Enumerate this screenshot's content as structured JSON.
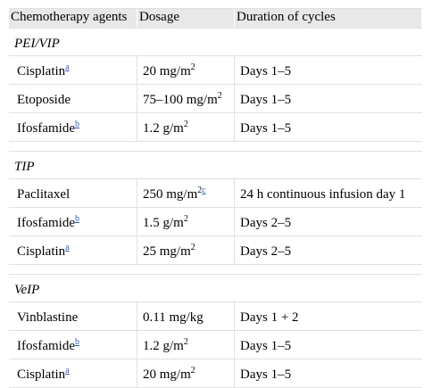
{
  "header": {
    "col_agents": "Chemotherapy agents",
    "col_dosage": "Dosage",
    "col_duration": "Duration of cycles"
  },
  "groups": [
    {
      "name": "PEI/VIP",
      "rows": [
        {
          "agent": "Cisplatin",
          "agent_note": "a",
          "dose": "20 mg/m",
          "dose_sup": "2",
          "dose_note": "",
          "duration": "Days 1–5"
        },
        {
          "agent": "Etoposide",
          "agent_note": "",
          "dose": "75–100 mg/m",
          "dose_sup": "2",
          "dose_note": "",
          "duration": "Days 1–5"
        },
        {
          "agent": "Ifosfamide",
          "agent_note": "b",
          "dose": "1.2 g/m",
          "dose_sup": "2",
          "dose_note": "",
          "duration": "Days 1–5"
        }
      ]
    },
    {
      "name": "TIP",
      "rows": [
        {
          "agent": "Paclitaxel",
          "agent_note": "",
          "dose": "250 mg/m",
          "dose_sup": "2",
          "dose_note": "c",
          "duration": "24 h continuous infusion day 1"
        },
        {
          "agent": "Ifosfamide",
          "agent_note": "b",
          "dose": "1.5 g/m",
          "dose_sup": "2",
          "dose_note": "",
          "duration": "Days 2–5"
        },
        {
          "agent": "Cisplatin",
          "agent_note": "a",
          "dose": "25 mg/m",
          "dose_sup": "2",
          "dose_note": "",
          "duration": "Days 2–5"
        }
      ]
    },
    {
      "name": "VeIP",
      "rows": [
        {
          "agent": "Vinblastine",
          "agent_note": "",
          "dose": "0.11 mg/kg",
          "dose_sup": "",
          "dose_note": "",
          "duration": "Days 1 + 2"
        },
        {
          "agent": "Ifosfamide",
          "agent_note": "b",
          "dose": "1.2 g/m",
          "dose_sup": "2",
          "dose_note": "",
          "duration": "Days 1–5"
        },
        {
          "agent": "Cisplatin",
          "agent_note": "a",
          "dose": "20 mg/m",
          "dose_sup": "2",
          "dose_note": "",
          "duration": "Days 1–5"
        }
      ]
    }
  ],
  "colors": {
    "header_bg": "#e8e8e8",
    "rule": "#e0e0e0",
    "footnote_link": "#2b57c9"
  }
}
